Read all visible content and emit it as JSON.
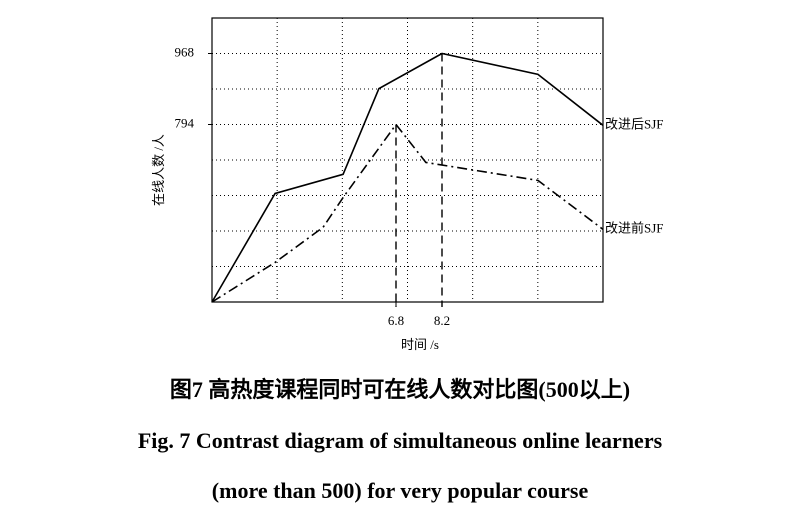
{
  "chart_data": {
    "type": "line",
    "xlabel": "时间 /s",
    "ylabel": "在线人数 /人",
    "xlim": [
      1.2,
      13.1
    ],
    "ylim": [
      359,
      1055
    ],
    "xticks": [
      6.8,
      8.2
    ],
    "yticks": [
      794,
      968
    ],
    "grid": true,
    "series": [
      {
        "name": "改进后SJF",
        "color": "#000",
        "style": "solid",
        "x": [
          1.2,
          3.12,
          5.19,
          6.28,
          8.2,
          11.12,
          13.1
        ],
        "values": [
          359,
          625,
          672,
          882,
          968,
          917,
          792
        ]
      },
      {
        "name": "改进前SJF",
        "color": "#000",
        "style": "dashdot",
        "x": [
          1.2,
          3.12,
          4.58,
          5.19,
          6.8,
          7.71,
          11.12,
          13.1
        ],
        "values": [
          359,
          456,
          542,
          615,
          794,
          701,
          657,
          537
        ]
      }
    ]
  },
  "caption": {
    "zh": "图7  高热度课程同时可在线人数对比图(500以上)",
    "en_line1": "Fig. 7  Contrast diagram of simultaneous online learners",
    "en_line2": "(more than 500) for very popular course"
  }
}
